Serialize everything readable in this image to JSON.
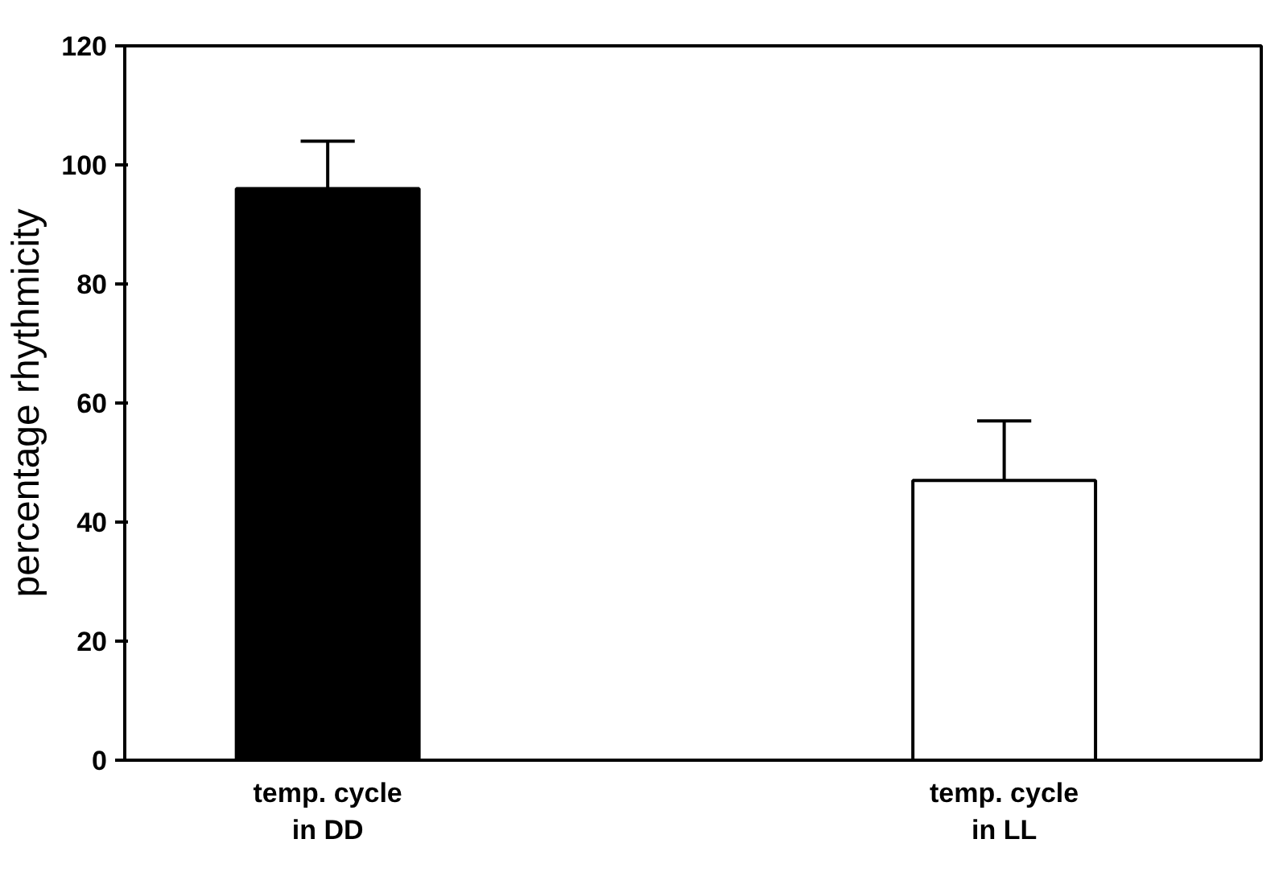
{
  "chart_data": {
    "type": "bar",
    "ylabel": "percentage rhythmicity",
    "categories": [
      "temp. cycle\nin DD",
      "temp. cycle\nin LL"
    ],
    "values": [
      96,
      47
    ],
    "colors": [
      "#000000",
      "#ffffff"
    ],
    "errors": [
      [
        96,
        104
      ],
      [
        47,
        57
      ]
    ],
    "ylim": [
      0,
      120
    ],
    "yticks": [
      0,
      20,
      40,
      60,
      80,
      100,
      120
    ],
    "grid": false
  }
}
